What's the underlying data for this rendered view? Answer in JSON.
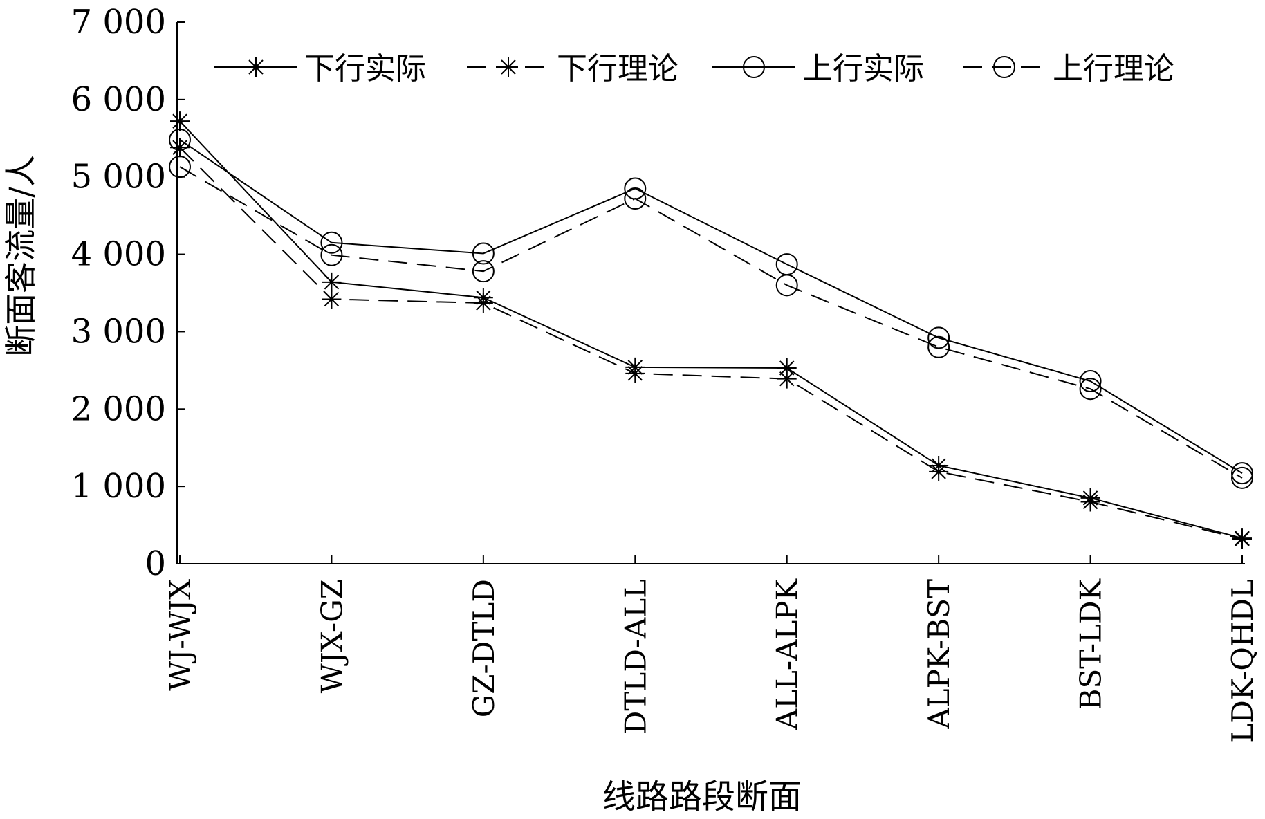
{
  "chart_data": {
    "type": "line",
    "title": "",
    "xlabel": "线路路段断面",
    "ylabel": "断面客流量/人",
    "ylim": [
      0,
      7000
    ],
    "yticks": [
      0,
      1000,
      2000,
      3000,
      4000,
      5000,
      6000,
      7000
    ],
    "ytick_labels": [
      "0",
      "1 000",
      "2 000",
      "3 000",
      "4 000",
      "5 000",
      "6 000",
      "7 000"
    ],
    "categories": [
      "WJ-WJX",
      "WJX-GZ",
      "GZ-DTLD",
      "DTLD-ALL",
      "ALL-ALPK",
      "ALPK-BST",
      "BST-LDK",
      "LDK-QHDL"
    ],
    "grid": false,
    "legend_position": "top",
    "series": [
      {
        "name": "下行实际",
        "marker": "star",
        "dash": "solid",
        "values": [
          5720,
          3640,
          3440,
          2540,
          2530,
          1270,
          850,
          330
        ]
      },
      {
        "name": "下行理论",
        "marker": "star",
        "dash": "dashed",
        "values": [
          5380,
          3420,
          3370,
          2460,
          2390,
          1190,
          800,
          320
        ]
      },
      {
        "name": "上行实际",
        "marker": "circle",
        "dash": "solid",
        "values": [
          5480,
          4150,
          4010,
          4850,
          3870,
          2920,
          2360,
          1170
        ]
      },
      {
        "name": "上行理论",
        "marker": "circle",
        "dash": "dashed",
        "values": [
          5130,
          3990,
          3780,
          4720,
          3600,
          2800,
          2260,
          1110
        ]
      }
    ]
  }
}
